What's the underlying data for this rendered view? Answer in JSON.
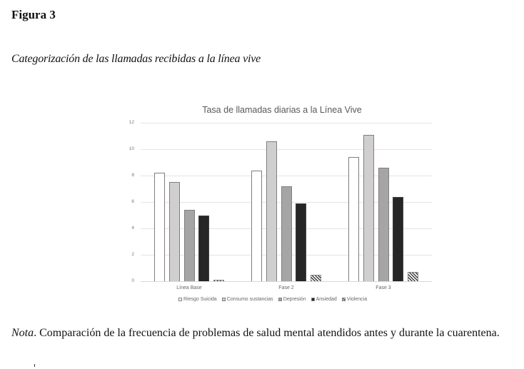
{
  "figure": {
    "label": "Figura 3",
    "caption": "Categorización de las llamadas recibidas a la línea vive"
  },
  "chart_data": {
    "type": "bar",
    "title": "Tasa de llamadas diarias a la Línea Vive",
    "xlabel": "",
    "ylabel": "",
    "ylim": [
      0,
      12
    ],
    "yticks": [
      0,
      2,
      4,
      6,
      8,
      10,
      12
    ],
    "grid": true,
    "legend_position": "bottom",
    "categories": [
      "Línea Base",
      "Fase 2",
      "Fase 3"
    ],
    "series": [
      {
        "name": "Riesgo Suicida",
        "values": [
          8.2,
          8.4,
          9.4
        ],
        "fill": "#ffffff"
      },
      {
        "name": "Consumo sustancias",
        "values": [
          7.5,
          10.6,
          11.1
        ],
        "fill": "#d0cece"
      },
      {
        "name": "Depresión",
        "values": [
          5.4,
          7.2,
          8.6
        ],
        "fill": "#a5a5a5"
      },
      {
        "name": "Ansiedad",
        "values": [
          5.0,
          5.9,
          6.4
        ],
        "fill": "#262626"
      },
      {
        "name": "Violencia",
        "values": [
          0.1,
          0.5,
          0.7
        ],
        "fill": "hatched"
      }
    ]
  },
  "note": {
    "label": "Nota",
    "text": ". Comparación de la frecuencia de problemas de salud mental atendidos antes y durante la cuarentena."
  }
}
